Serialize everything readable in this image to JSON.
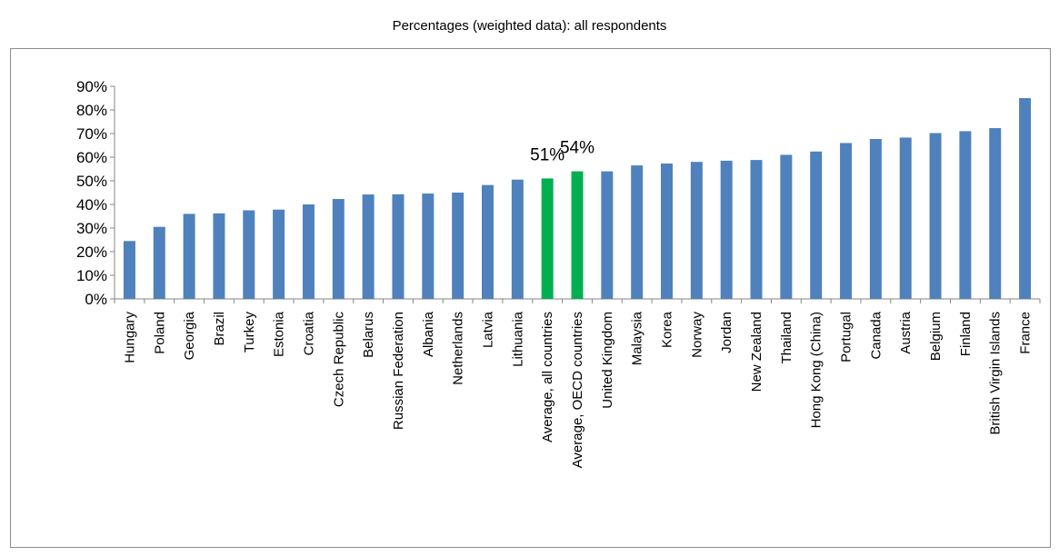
{
  "chart_data": {
    "type": "bar",
    "title": "Percentages (weighted data): all respondents",
    "xlabel": "",
    "ylabel": "",
    "ylim": [
      0,
      90
    ],
    "yticks": [
      "0%",
      "10%",
      "20%",
      "30%",
      "40%",
      "50%",
      "60%",
      "70%",
      "80%",
      "90%"
    ],
    "grid": false,
    "legend": "none",
    "colors": {
      "default": "#4f81bd",
      "highlight": "#00b050"
    },
    "categories": [
      "Hungary",
      "Poland",
      "Georgia",
      "Brazil",
      "Turkey",
      "Estonia",
      "Croatia",
      "Czech Republic",
      "Belarus",
      "Russian Federation",
      "Albania",
      "Netherlands",
      "Latvia",
      "Lithuania",
      "Average, all countries",
      "Average, OECD countries",
      "United Kingdom",
      "Malaysia",
      "Korea",
      "Norway",
      "Jordan",
      "New Zealand",
      "Thailand",
      "Hong Kong (China)",
      "Portugal",
      "Canada",
      "Austria",
      "Belgium",
      "Finland",
      "British Virgin Islands",
      "France"
    ],
    "values": [
      24.5,
      30.5,
      36,
      36.2,
      37.5,
      37.8,
      40,
      42.3,
      44.2,
      44.3,
      44.6,
      45,
      48.2,
      50.5,
      51,
      54,
      54,
      56.5,
      57.3,
      58,
      58.5,
      58.8,
      61,
      62.4,
      66,
      67.7,
      68.3,
      70.2,
      71,
      72.3,
      85
    ],
    "highlighted": [
      "Average, all countries",
      "Average, OECD countries"
    ],
    "data_labels": [
      {
        "category": "Average, all countries",
        "text": "51%"
      },
      {
        "category": "Average, OECD countries",
        "text": "54%"
      }
    ]
  }
}
